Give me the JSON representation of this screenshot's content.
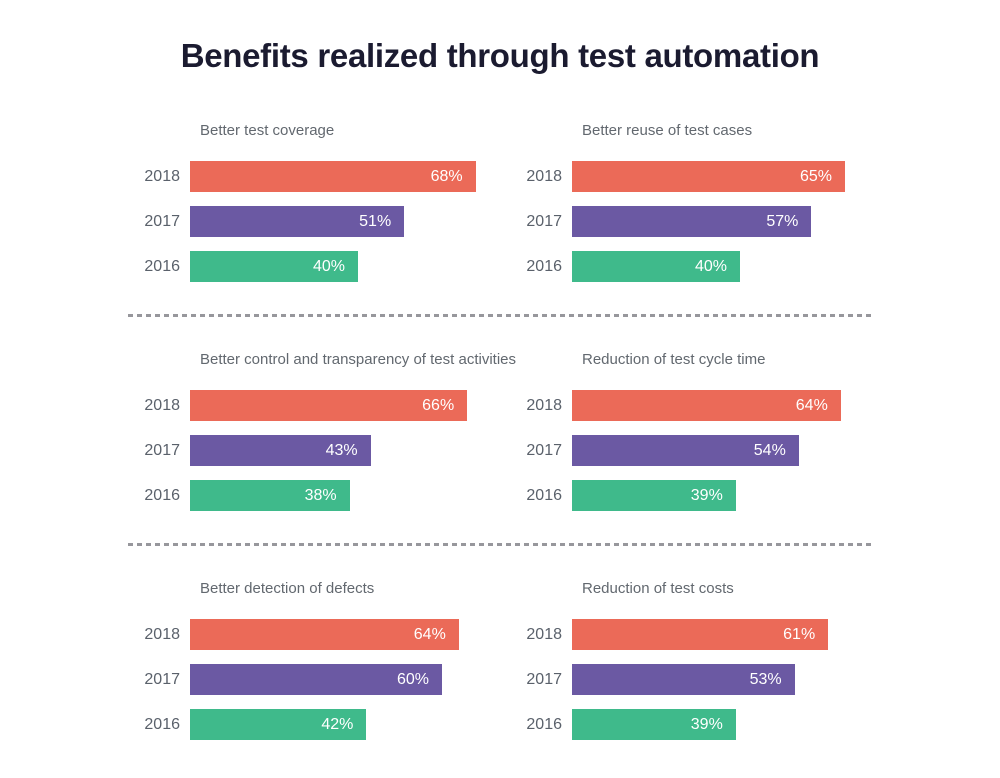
{
  "title": "Benefits realized through test automation",
  "colors": {
    "2018": "#EB6A58",
    "2017": "#6B59A3",
    "2016": "#3FBA8B",
    "title_text": "#1B1B30",
    "chart_title_text": "#62686F",
    "year_label_text": "#5A616B",
    "bar_value_text": "#FFFFFF",
    "divider": "#97979C",
    "background": "#FFFFFF"
  },
  "chart_data": [
    {
      "type": "bar",
      "orientation": "horizontal",
      "title": "Better test coverage",
      "categories": [
        "2018",
        "2017",
        "2016"
      ],
      "values": [
        68,
        51,
        40
      ],
      "labels": [
        "68%",
        "51%",
        "40%"
      ],
      "xlim": [
        0,
        100
      ],
      "unit": "percent",
      "grid": false,
      "legend": "none"
    },
    {
      "type": "bar",
      "orientation": "horizontal",
      "title": "Better reuse of test cases",
      "categories": [
        "2018",
        "2017",
        "2016"
      ],
      "values": [
        65,
        57,
        40
      ],
      "labels": [
        "65%",
        "57%",
        "40%"
      ],
      "xlim": [
        0,
        100
      ],
      "unit": "percent",
      "grid": false,
      "legend": "none"
    },
    {
      "type": "bar",
      "orientation": "horizontal",
      "title": "Better control and transparency of test activities",
      "categories": [
        "2018",
        "2017",
        "2016"
      ],
      "values": [
        66,
        43,
        38
      ],
      "labels": [
        "66%",
        "43%",
        "38%"
      ],
      "xlim": [
        0,
        100
      ],
      "unit": "percent",
      "grid": false,
      "legend": "none"
    },
    {
      "type": "bar",
      "orientation": "horizontal",
      "title": "Reduction of test cycle time",
      "categories": [
        "2018",
        "2017",
        "2016"
      ],
      "values": [
        64,
        54,
        39
      ],
      "labels": [
        "64%",
        "54%",
        "39%"
      ],
      "xlim": [
        0,
        100
      ],
      "unit": "percent",
      "grid": false,
      "legend": "none"
    },
    {
      "type": "bar",
      "orientation": "horizontal",
      "title": "Better detection of defects",
      "categories": [
        "2018",
        "2017",
        "2016"
      ],
      "values": [
        64,
        60,
        42
      ],
      "labels": [
        "64%",
        "60%",
        "42%"
      ],
      "xlim": [
        0,
        100
      ],
      "unit": "percent",
      "grid": false,
      "legend": "none"
    },
    {
      "type": "bar",
      "orientation": "horizontal",
      "title": "Reduction of test costs",
      "categories": [
        "2018",
        "2017",
        "2016"
      ],
      "values": [
        61,
        53,
        39
      ],
      "labels": [
        "61%",
        "53%",
        "39%"
      ],
      "xlim": [
        0,
        100
      ],
      "unit": "percent",
      "grid": false,
      "legend": "none"
    }
  ]
}
